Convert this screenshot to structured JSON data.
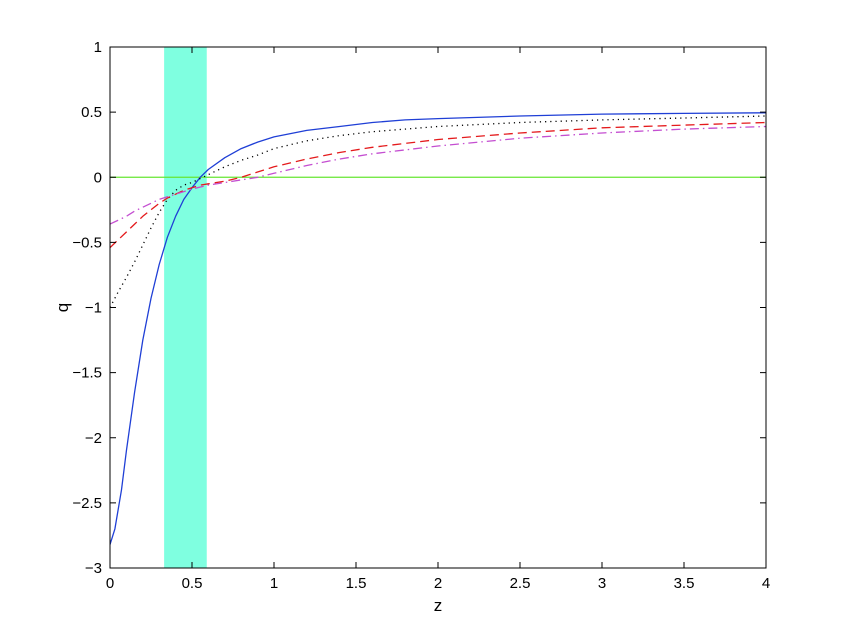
{
  "chart_data": {
    "type": "line",
    "title": "",
    "xlabel": "z",
    "ylabel": "q",
    "xlim": [
      0,
      4
    ],
    "ylim": [
      -3,
      1
    ],
    "grid": false,
    "legend": "none",
    "x_ticks": [
      0,
      0.5,
      1,
      1.5,
      2,
      2.5,
      3,
      3.5,
      4
    ],
    "x_tick_labels": [
      "0",
      "0.5",
      "1",
      "1.5",
      "2",
      "2.5",
      "3",
      "3.5",
      "4"
    ],
    "y_ticks": [
      1,
      0.5,
      0,
      -0.5,
      -1,
      -1.5,
      -2,
      -2.5,
      -3
    ],
    "y_tick_labels": [
      "1",
      "0.5",
      "0",
      "−0.5",
      "−1",
      "−1.5",
      "−2",
      "−2.5",
      "−3"
    ],
    "shaded_band": {
      "x_range": [
        0.33,
        0.59
      ],
      "color": "#7fffe0"
    },
    "reference_line": {
      "y": 0,
      "color": "#66e633"
    },
    "series": [
      {
        "style": "solid",
        "color": "#1f3fd6",
        "points": [
          [
            0.0,
            -2.82
          ],
          [
            0.03,
            -2.7
          ],
          [
            0.07,
            -2.4
          ],
          [
            0.1,
            -2.1
          ],
          [
            0.15,
            -1.65
          ],
          [
            0.2,
            -1.25
          ],
          [
            0.25,
            -0.93
          ],
          [
            0.3,
            -0.67
          ],
          [
            0.35,
            -0.46
          ],
          [
            0.4,
            -0.3
          ],
          [
            0.45,
            -0.17
          ],
          [
            0.5,
            -0.08
          ],
          [
            0.55,
            0.0
          ],
          [
            0.6,
            0.06
          ],
          [
            0.7,
            0.15
          ],
          [
            0.8,
            0.22
          ],
          [
            0.9,
            0.27
          ],
          [
            1.0,
            0.31
          ],
          [
            1.2,
            0.36
          ],
          [
            1.4,
            0.39
          ],
          [
            1.6,
            0.42
          ],
          [
            1.8,
            0.44
          ],
          [
            2.0,
            0.45
          ],
          [
            2.5,
            0.47
          ],
          [
            3.0,
            0.485
          ],
          [
            3.5,
            0.49
          ],
          [
            4.0,
            0.495
          ]
        ]
      },
      {
        "style": "dotted",
        "color": "#000000",
        "points": [
          [
            0.0,
            -1.0
          ],
          [
            0.05,
            -0.88
          ],
          [
            0.1,
            -0.77
          ],
          [
            0.15,
            -0.65
          ],
          [
            0.2,
            -0.52
          ],
          [
            0.25,
            -0.39
          ],
          [
            0.3,
            -0.27
          ],
          [
            0.35,
            -0.17
          ],
          [
            0.4,
            -0.1
          ],
          [
            0.45,
            -0.06
          ],
          [
            0.5,
            -0.04
          ],
          [
            0.55,
            -0.01
          ],
          [
            0.6,
            0.02
          ],
          [
            0.7,
            0.08
          ],
          [
            0.8,
            0.13
          ],
          [
            0.9,
            0.17
          ],
          [
            1.0,
            0.22
          ],
          [
            1.2,
            0.28
          ],
          [
            1.4,
            0.32
          ],
          [
            1.6,
            0.35
          ],
          [
            1.8,
            0.37
          ],
          [
            2.0,
            0.39
          ],
          [
            2.5,
            0.42
          ],
          [
            3.0,
            0.44
          ],
          [
            3.5,
            0.455
          ],
          [
            4.0,
            0.47
          ]
        ]
      },
      {
        "style": "dashed",
        "color": "#e41a1c",
        "points": [
          [
            0.0,
            -0.54
          ],
          [
            0.05,
            -0.48
          ],
          [
            0.1,
            -0.42
          ],
          [
            0.15,
            -0.36
          ],
          [
            0.2,
            -0.3
          ],
          [
            0.25,
            -0.25
          ],
          [
            0.3,
            -0.2
          ],
          [
            0.35,
            -0.16
          ],
          [
            0.4,
            -0.13
          ],
          [
            0.45,
            -0.1
          ],
          [
            0.5,
            -0.08
          ],
          [
            0.55,
            -0.06
          ],
          [
            0.6,
            -0.05
          ],
          [
            0.7,
            -0.03
          ],
          [
            0.8,
            0.0
          ],
          [
            0.9,
            0.04
          ],
          [
            1.0,
            0.08
          ],
          [
            1.2,
            0.14
          ],
          [
            1.4,
            0.19
          ],
          [
            1.6,
            0.23
          ],
          [
            1.8,
            0.26
          ],
          [
            2.0,
            0.29
          ],
          [
            2.5,
            0.34
          ],
          [
            3.0,
            0.38
          ],
          [
            3.5,
            0.4
          ],
          [
            4.0,
            0.42
          ]
        ]
      },
      {
        "style": "dash-dot",
        "color": "#c44ed1",
        "points": [
          [
            0.0,
            -0.36
          ],
          [
            0.05,
            -0.33
          ],
          [
            0.1,
            -0.3
          ],
          [
            0.15,
            -0.26
          ],
          [
            0.2,
            -0.23
          ],
          [
            0.25,
            -0.2
          ],
          [
            0.3,
            -0.17
          ],
          [
            0.35,
            -0.15
          ],
          [
            0.4,
            -0.13
          ],
          [
            0.45,
            -0.11
          ],
          [
            0.5,
            -0.09
          ],
          [
            0.6,
            -0.06
          ],
          [
            0.7,
            -0.04
          ],
          [
            0.8,
            -0.02
          ],
          [
            0.9,
            0.0
          ],
          [
            1.0,
            0.03
          ],
          [
            1.2,
            0.09
          ],
          [
            1.4,
            0.14
          ],
          [
            1.6,
            0.18
          ],
          [
            1.8,
            0.21
          ],
          [
            2.0,
            0.24
          ],
          [
            2.5,
            0.3
          ],
          [
            3.0,
            0.34
          ],
          [
            3.5,
            0.37
          ],
          [
            4.0,
            0.39
          ]
        ]
      }
    ]
  }
}
